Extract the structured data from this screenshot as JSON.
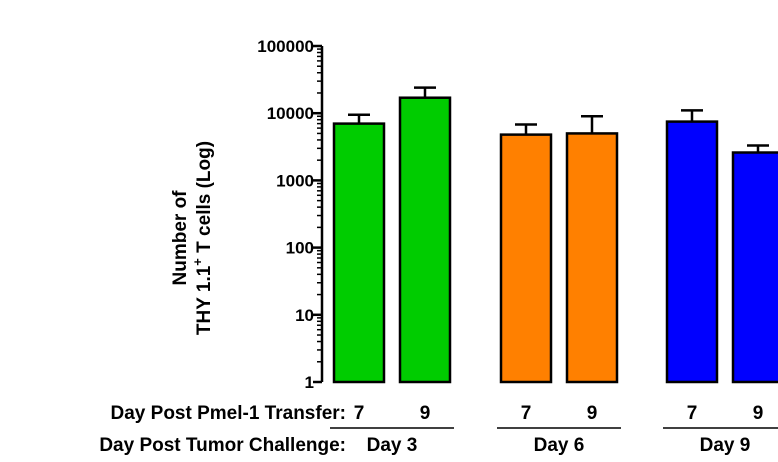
{
  "chart_data": {
    "type": "bar",
    "y_scale": "log",
    "ylim": [
      1,
      100000
    ],
    "yticks": [
      "1",
      "10",
      "100",
      "1000",
      "10000",
      "100000"
    ],
    "ylabel": {
      "line1": "Number of",
      "line2_prefix": "THY 1.1",
      "line2_superscript": "+",
      "line2_suffix": " T cells (Log)"
    },
    "row_labels": {
      "transfer": "Day Post Pmel-1 Transfer:",
      "challenge": "Day Post Tumor Challenge:"
    },
    "groups": [
      {
        "label": "Day 3",
        "color": "#00cc00",
        "bars": [
          {
            "category": "7",
            "value": 7000,
            "error": 2500
          },
          {
            "category": "9",
            "value": 17000,
            "error": 7000
          }
        ]
      },
      {
        "label": "Day 6",
        "color": "#ff8000",
        "bars": [
          {
            "category": "7",
            "value": 4800,
            "error": 2000
          },
          {
            "category": "9",
            "value": 5000,
            "error": 4000
          }
        ]
      },
      {
        "label": "Day 9",
        "color": "#0000ff",
        "bars": [
          {
            "category": "7",
            "value": 7500,
            "error": 3500
          },
          {
            "category": "9",
            "value": 2600,
            "error": 700
          }
        ]
      }
    ],
    "grid": false,
    "legend": "none"
  }
}
